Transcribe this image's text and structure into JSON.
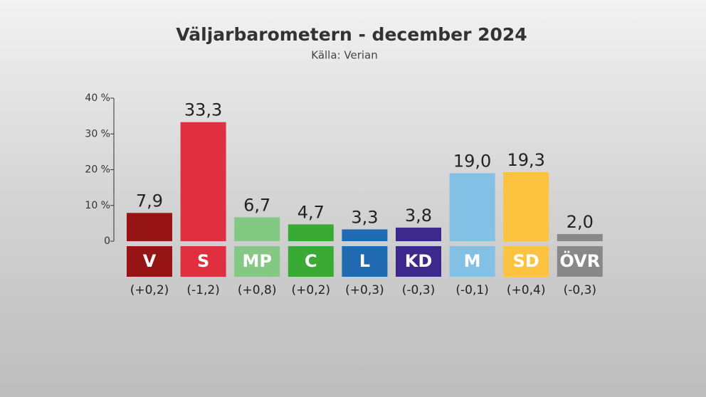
{
  "chart_data": {
    "type": "bar",
    "title": "Väljarbarometern - december 2024",
    "subtitle": "Källa: Verian",
    "categories": [
      "V",
      "S",
      "MP",
      "C",
      "L",
      "KD",
      "M",
      "SD",
      "ÖVR"
    ],
    "values": [
      7.9,
      33.3,
      6.7,
      4.7,
      3.3,
      3.8,
      19.0,
      19.3,
      2.0
    ],
    "value_labels": [
      "7,9",
      "33,3",
      "6,7",
      "4,7",
      "3,3",
      "3,8",
      "19,0",
      "19,3",
      "2,0"
    ],
    "changes": [
      "(+0,2)",
      "(-1,2)",
      "(+0,8)",
      "(+0,2)",
      "(+0,3)",
      "(-0,3)",
      "(-0,1)",
      "(+0,4)",
      "(-0,3)"
    ],
    "colors": [
      "#961414",
      "#e0303f",
      "#83c983",
      "#3aaa35",
      "#1f6ab0",
      "#3b2a8c",
      "#82c0e6",
      "#fbc340",
      "#888888"
    ],
    "ylim": [
      0,
      40
    ],
    "yticks": [
      0,
      {
        "value": 10,
        "label": "10 %"
      },
      {
        "value": 20,
        "label": "20 %"
      },
      {
        "value": 30,
        "label": "30 %"
      },
      {
        "value": 40,
        "label": "40 %"
      }
    ],
    "grid": false
  }
}
